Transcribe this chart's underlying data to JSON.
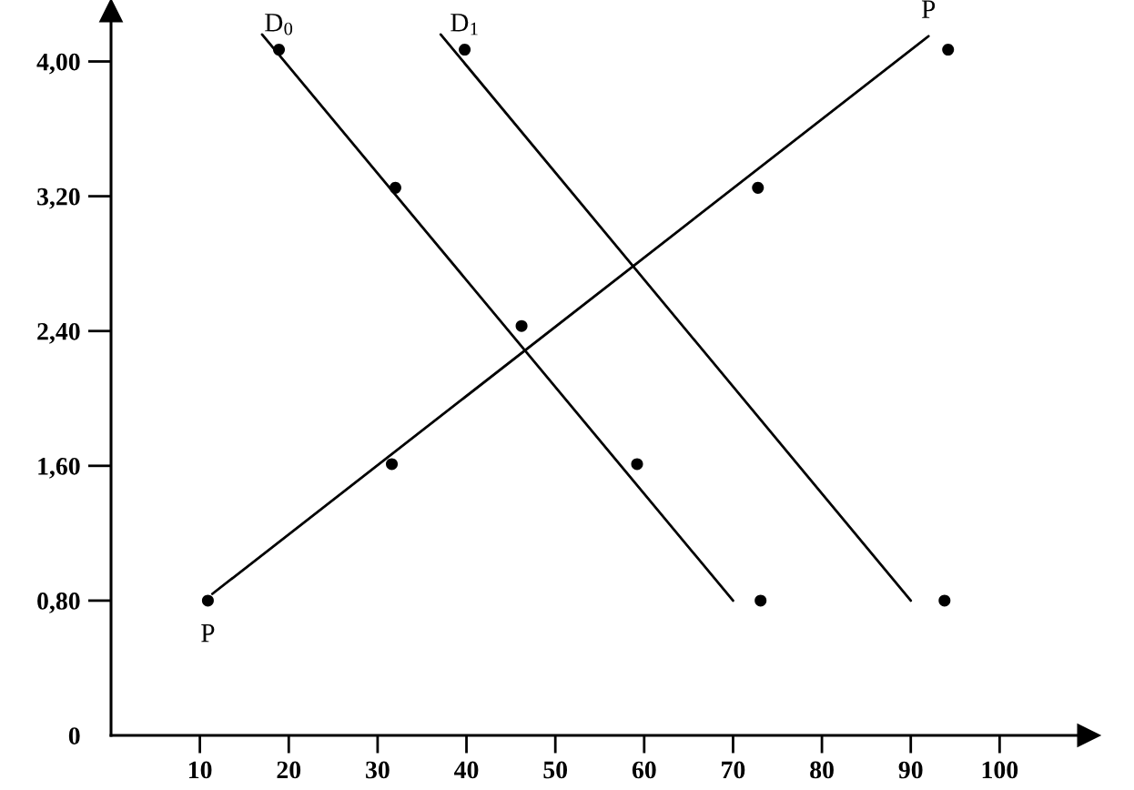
{
  "chart_data": {
    "type": "line",
    "marker": "none",
    "line_style": "solid",
    "series": [
      {
        "color": "#000000",
        "x": [
          17.0,
          70.0
        ],
        "values": [
          4.16,
          0.8
        ]
      },
      {
        "color": "#000000",
        "x": [
          37.1,
          90.0
        ],
        "values": [
          4.16,
          0.8
        ]
      },
      {
        "color": "#000000",
        "x": [
          11.4,
          92.0
        ],
        "values": [
          0.84,
          4.15
        ]
      },
      {
        "type": "scatter",
        "color": "#000000",
        "marker": "circle",
        "x": [
          18.9,
          32.0,
          46.2,
          59.2,
          73.1,
          39.8,
          10.9,
          31.6,
          72.8,
          94.2,
          93.8
        ],
        "values": [
          4.07,
          3.25,
          2.43,
          1.61,
          0.8,
          4.07,
          0.8,
          1.61,
          3.25,
          4.07,
          0.8
        ]
      }
    ],
    "xlim": [
      0,
      110
    ],
    "ylim": [
      0,
      4.3
    ],
    "xticks": [
      10,
      20,
      30,
      40,
      50,
      60,
      70,
      80,
      90,
      100
    ],
    "yticks": [
      {
        "value": 0,
        "label": "0"
      },
      {
        "value": 0.8,
        "label": "0,80"
      },
      {
        "value": 1.6,
        "label": "1,60"
      },
      {
        "value": 2.4,
        "label": "2,40"
      },
      {
        "value": 3.2,
        "label": "3,20"
      },
      {
        "value": 4.0,
        "label": "4,00"
      }
    ],
    "annotations": [
      {
        "text": "D$_{0}$",
        "x": 18.9,
        "y": 4.07
      },
      {
        "text": "D$_{1}$",
        "x": 39.8,
        "y": 4.07
      },
      {
        "text": "P",
        "x": 92.0,
        "y": 4.15
      },
      {
        "text": "P",
        "x": 10.9,
        "y": 0.8
      }
    ]
  }
}
